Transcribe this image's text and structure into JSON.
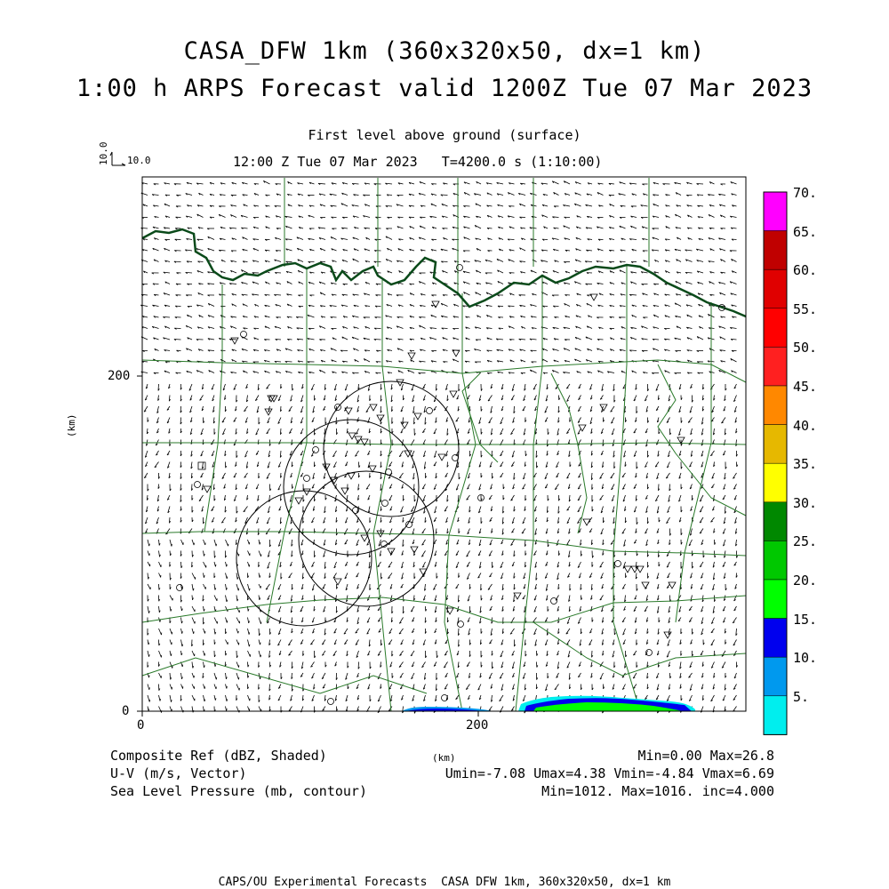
{
  "title": {
    "line1": "CASA_DFW 1km (360x320x50, dx=1 km)",
    "line2": "1:00 h ARPS Forecast valid 1200Z Tue 07 Mar 2023"
  },
  "subtitle": {
    "level": "First level above ground (surface)",
    "time": "12:00 Z Tue 07 Mar 2023   T=4200.0 s (1:10:00)"
  },
  "vector_key": {
    "vertical": "10.0",
    "horizontal": "10.0"
  },
  "axes": {
    "x_ticks": [
      "0",
      "200"
    ],
    "y_ticks": [
      "0",
      "200"
    ],
    "x_label": "(km)",
    "y_label": "(km)"
  },
  "colorbar": {
    "labels": [
      "70.",
      "65.",
      "60.",
      "55.",
      "50.",
      "45.",
      "40.",
      "35.",
      "30.",
      "25.",
      "20.",
      "15.",
      "10.",
      "5."
    ],
    "colors": [
      "#ff00ff",
      "#c00000",
      "#e00000",
      "#ff0000",
      "#ff2020",
      "#ff8800",
      "#e6b800",
      "#ffff00",
      "#008800",
      "#00c800",
      "#00ff00",
      "#0000ee",
      "#0099ee",
      "#00eeee"
    ]
  },
  "footer": {
    "left1": "Composite Ref (dBZ, Shaded)",
    "left2": "U-V (m/s, Vector)",
    "left3": "Sea Level Pressure (mb, contour)",
    "center": "(km)",
    "right1": "Min=0.00 Max=26.8",
    "right2": "Umin=-7.08 Umax=4.38 Vmin=-4.84 Vmax=6.69",
    "right3": "Min=1012. Max=1016. inc=4.000",
    "credit": "CAPS/OU Experimental Forecasts  CASA DFW 1km, 360x320x50, dx=1 km"
  }
}
